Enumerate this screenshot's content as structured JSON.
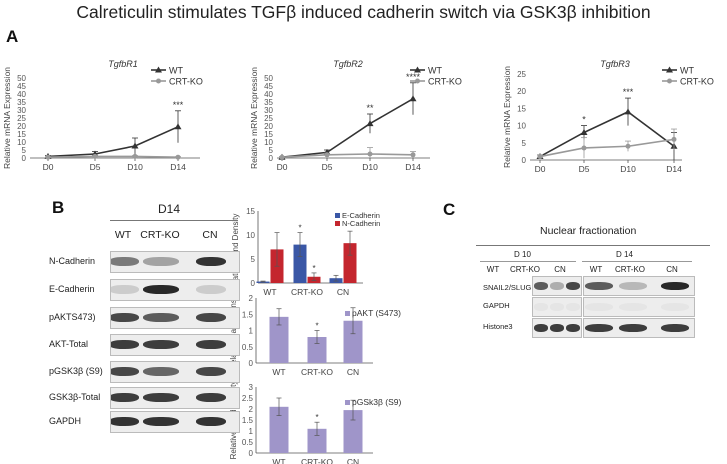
{
  "figure_title": "Calreticulin stimulates TGFβ induced cadherin switch via GSK3β inhibition",
  "panel_letters": {
    "a": "A",
    "b": "B",
    "c": "C"
  },
  "colors": {
    "wt": "#333333",
    "ko": "#999999",
    "ecad": "#3a57a6",
    "ncad": "#c4262e",
    "purple": "#9f95c9"
  },
  "chart_data": [
    {
      "type": "line",
      "title": "TgfbR1",
      "ylabel": "Relative mRNA Expression",
      "ylim": [
        0,
        50
      ],
      "yticks": [
        "0",
        "5",
        "10",
        "15",
        "20",
        "25",
        "30",
        "35",
        "40",
        "45",
        "50"
      ],
      "categories": [
        "D0",
        "D5",
        "D10",
        "D14"
      ],
      "series": [
        {
          "name": "WT",
          "values": [
            1,
            2.5,
            7.5,
            19.5
          ],
          "errors": [
            0.5,
            1.5,
            5,
            10
          ]
        },
        {
          "name": "CRT-KO",
          "values": [
            0.5,
            1,
            1,
            0.5
          ],
          "errors": [
            0.3,
            0.5,
            0.5,
            0.3
          ]
        }
      ],
      "annotations": [
        "",
        "",
        "",
        "***"
      ]
    },
    {
      "type": "line",
      "title": "TgfbR2",
      "ylabel": "Relative mRNA Expression",
      "ylim": [
        0,
        50
      ],
      "yticks": [
        "0",
        "5",
        "10",
        "15",
        "20",
        "25",
        "30",
        "35",
        "40",
        "45",
        "50"
      ],
      "categories": [
        "D0",
        "D5",
        "D10",
        "D14"
      ],
      "series": [
        {
          "name": "WT",
          "values": [
            0.5,
            3.5,
            21.5,
            37
          ],
          "errors": [
            0.3,
            1.5,
            6,
            10
          ]
        },
        {
          "name": "CRT-KO",
          "values": [
            0.5,
            2,
            2.5,
            2
          ],
          "errors": [
            0.3,
            1,
            4,
            2
          ]
        }
      ],
      "annotations": [
        "",
        "",
        "**",
        "****"
      ]
    },
    {
      "type": "line",
      "title": "TgfbR3",
      "ylabel": "Relative mRNA Expression",
      "ylim": [
        0,
        25
      ],
      "yticks": [
        "0",
        "5",
        "10",
        "15",
        "20",
        "25"
      ],
      "categories": [
        "D0",
        "D5",
        "D10",
        "D14"
      ],
      "series": [
        {
          "name": "WT",
          "values": [
            1,
            8,
            14,
            4
          ],
          "errors": [
            0.5,
            2,
            4,
            4
          ]
        },
        {
          "name": "CRT-KO",
          "values": [
            1,
            3.5,
            4,
            6
          ],
          "errors": [
            0.5,
            3,
            1.5,
            3
          ]
        }
      ],
      "annotations": [
        "",
        "*",
        "***",
        ""
      ]
    },
    {
      "type": "bar",
      "ylabel": "Relative Band Density",
      "ylim": [
        0,
        15
      ],
      "yticks": [
        "0",
        "5",
        "10",
        "15"
      ],
      "categories": [
        "WT",
        "CRT-KO",
        "CN"
      ],
      "series": [
        {
          "name": "E-Cadherin",
          "values": [
            0.3,
            8,
            1
          ],
          "errors": [
            0.1,
            2.5,
            0.6
          ]
        },
        {
          "name": "N-Cadherin",
          "values": [
            7,
            1.3,
            8.3
          ],
          "errors": [
            3.5,
            0.8,
            2.5
          ]
        }
      ],
      "annotations": [
        "",
        "*",
        ""
      ],
      "annotations2": [
        "",
        "*",
        ""
      ]
    },
    {
      "type": "bar",
      "ylabel": "Relative Band Density",
      "ylim": [
        0,
        2
      ],
      "yticks": [
        "0",
        "0.5",
        "1",
        "1.5",
        "2"
      ],
      "categories": [
        "WT",
        "CRT-KO",
        "CN"
      ],
      "series": [
        {
          "name": "pAKT (S473)",
          "values": [
            1.42,
            0.8,
            1.3
          ],
          "errors": [
            0.25,
            0.2,
            0.4
          ]
        }
      ],
      "annotations": [
        "",
        "*",
        ""
      ]
    },
    {
      "type": "bar",
      "ylabel": "Relative Band Density",
      "ylim": [
        0,
        3
      ],
      "yticks": [
        "0",
        "0.5",
        "1",
        "1.5",
        "2",
        "2.5",
        "3"
      ],
      "categories": [
        "WT",
        "CRT-KO",
        "CN"
      ],
      "series": [
        {
          "name": "pGSk3β (S9)",
          "values": [
            2.1,
            1.1,
            1.95
          ],
          "errors": [
            0.4,
            0.3,
            0.45
          ]
        }
      ],
      "annotations": [
        "",
        "*",
        ""
      ]
    }
  ],
  "blot_b": {
    "timepoint": "D14",
    "lanes": [
      "WT",
      "CRT-KO",
      "CN"
    ],
    "rows": [
      "N-Cadherin",
      "E-Cadherin",
      "pAKTS473)",
      "AKT-Total",
      "pGSK3β (S9)",
      "GSK3β-Total",
      "GAPDH"
    ],
    "intensity": [
      [
        0.55,
        0.35,
        0.9
      ],
      [
        0.15,
        0.95,
        0.15
      ],
      [
        0.8,
        0.7,
        0.8
      ],
      [
        0.85,
        0.85,
        0.85
      ],
      [
        0.8,
        0.65,
        0.8
      ],
      [
        0.85,
        0.85,
        0.85
      ],
      [
        0.9,
        0.9,
        0.9
      ]
    ]
  },
  "blot_c": {
    "title": "Nuclear fractionation",
    "groups": [
      "D 10",
      "D 14"
    ],
    "lanes": [
      "WT",
      "CRT-KO",
      "CN"
    ],
    "rows": [
      "SNAIL2/SLUG",
      "GAPDH",
      "Histone3"
    ],
    "intensity": [
      [
        [
          0.7,
          0.3,
          0.8
        ],
        [
          0.7,
          0.25,
          0.95
        ]
      ],
      [
        [
          0.03,
          0.03,
          0.03
        ],
        [
          0.03,
          0.03,
          0.03
        ]
      ],
      [
        [
          0.85,
          0.85,
          0.85
        ],
        [
          0.85,
          0.85,
          0.85
        ]
      ]
    ]
  }
}
